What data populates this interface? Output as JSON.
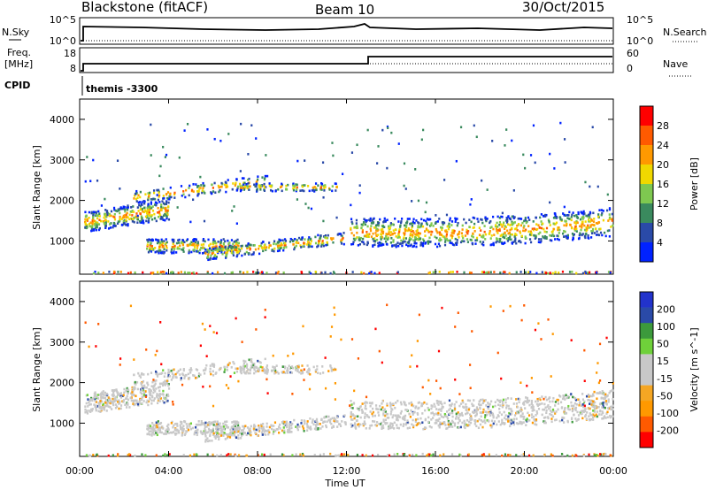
{
  "header": {
    "station": "Blackstone (fitACF)",
    "beam": "Beam 10",
    "date": "30/Oct/2015"
  },
  "nsky_panel": {
    "left_label": "N.Sky",
    "right_label": "N.Search",
    "left_ticks": [
      "10^5",
      "10^0"
    ],
    "right_ticks": [
      "10^5",
      "10^0"
    ]
  },
  "freq_panel": {
    "left_label_1": "Freq.",
    "left_label_2": "[MHz]",
    "right_label": "Nave",
    "left_ticks": [
      "18",
      "8"
    ],
    "right_ticks": [
      "60",
      "0"
    ]
  },
  "cpid_panel": {
    "label": "CPID",
    "value": "themis -3300"
  },
  "colors": {
    "power": [
      "#0022ff",
      "#2a4aa8",
      "#3a8a5e",
      "#7ec850",
      "#f0d800",
      "#ff9900",
      "#ff5a00",
      "#ff0000"
    ],
    "velocity": [
      "#ff0000",
      "#ff5a00",
      "#ff9900",
      "#f5a623",
      "#c8c8c8",
      "#c8c8c8",
      "#6fd13a",
      "#3c9a3c",
      "#2a4aa8",
      "#2233cc"
    ]
  },
  "chart_data": [
    {
      "type": "heatmap",
      "title": "",
      "ylabel": "Slant Range [km]",
      "ylim": [
        180,
        4500
      ],
      "y_ticks": [
        "1000",
        "2000",
        "3000",
        "4000"
      ],
      "colorbar": {
        "label": "Power [dB]",
        "ticks": [
          "4",
          "8",
          "12",
          "16",
          "20",
          "24",
          "28"
        ],
        "range": [
          0,
          32
        ]
      }
    },
    {
      "type": "heatmap",
      "title": "",
      "ylabel": "Slant Range [km]",
      "ylim": [
        180,
        4500
      ],
      "y_ticks": [
        "1000",
        "2000",
        "3000",
        "4000"
      ],
      "xlabel": "Time UT",
      "x_ticks": [
        "00:00",
        "04:00",
        "08:00",
        "12:00",
        "16:00",
        "20:00",
        "00:00"
      ],
      "colorbar": {
        "label": "Velocity [m s^-1]",
        "ticks": [
          "200",
          "100",
          "50",
          "15",
          "-15",
          "-50",
          "-100",
          "-200"
        ]
      }
    }
  ]
}
